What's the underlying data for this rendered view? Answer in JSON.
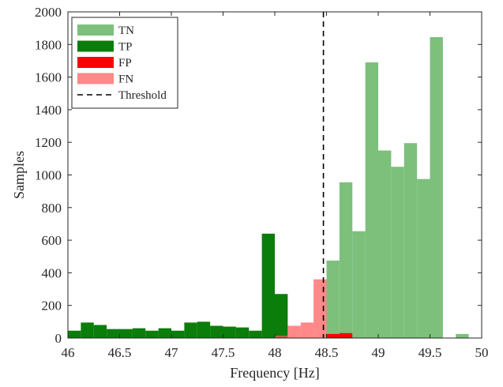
{
  "chart_data": {
    "type": "bar",
    "xlabel": "Frequency [Hz]",
    "ylabel": "Samples",
    "xlim": [
      46,
      50
    ],
    "ylim": [
      0,
      2000
    ],
    "xticks": [
      46,
      46.5,
      47,
      47.5,
      48,
      48.5,
      49,
      49.5,
      50
    ],
    "xtick_labels": [
      "46",
      "46.5",
      "47",
      "47.5",
      "48",
      "48.5",
      "49",
      "49.5",
      "50"
    ],
    "yticks": [
      0,
      200,
      400,
      600,
      800,
      1000,
      1200,
      1400,
      1600,
      1800,
      2000
    ],
    "ytick_labels": [
      "0",
      "200",
      "400",
      "600",
      "800",
      "1000",
      "1200",
      "1400",
      "1600",
      "1800",
      "2000"
    ],
    "bin_width": 0.125,
    "threshold": 48.47,
    "legend_position": "top-left",
    "grid": false,
    "series": [
      {
        "name": "TN",
        "color": "#7cc07c",
        "opacity": 1,
        "bin_starts": [
          48.5,
          48.625,
          48.75,
          48.875,
          49.0,
          49.125,
          49.25,
          49.375,
          49.5,
          49.625,
          49.75
        ],
        "values": [
          475,
          955,
          655,
          1690,
          1150,
          1050,
          1195,
          975,
          1845,
          0,
          25
        ]
      },
      {
        "name": "TP",
        "color": "#0a7d0a",
        "opacity": 1,
        "bin_starts": [
          46.0,
          46.125,
          46.25,
          46.375,
          46.5,
          46.625,
          46.75,
          46.875,
          47.0,
          47.125,
          47.25,
          47.375,
          47.5,
          47.625,
          47.75,
          47.875,
          48.0,
          48.125,
          48.25,
          48.375
        ],
        "values": [
          45,
          95,
          80,
          55,
          55,
          60,
          45,
          60,
          45,
          95,
          100,
          75,
          70,
          65,
          45,
          640,
          270,
          0,
          0,
          0
        ]
      },
      {
        "name": "FP",
        "color": "#ff0000",
        "opacity": 1,
        "bin_starts": [
          48.5,
          48.625
        ],
        "values": [
          25,
          30
        ]
      },
      {
        "name": "FN",
        "color": "#ff5555",
        "opacity": 0.7,
        "bin_starts": [
          48.0,
          48.125,
          48.25,
          48.375
        ],
        "values": [
          15,
          75,
          95,
          360
        ]
      }
    ],
    "threshold_series": {
      "name": "Threshold",
      "style": "dashed",
      "color": "#000000"
    }
  }
}
